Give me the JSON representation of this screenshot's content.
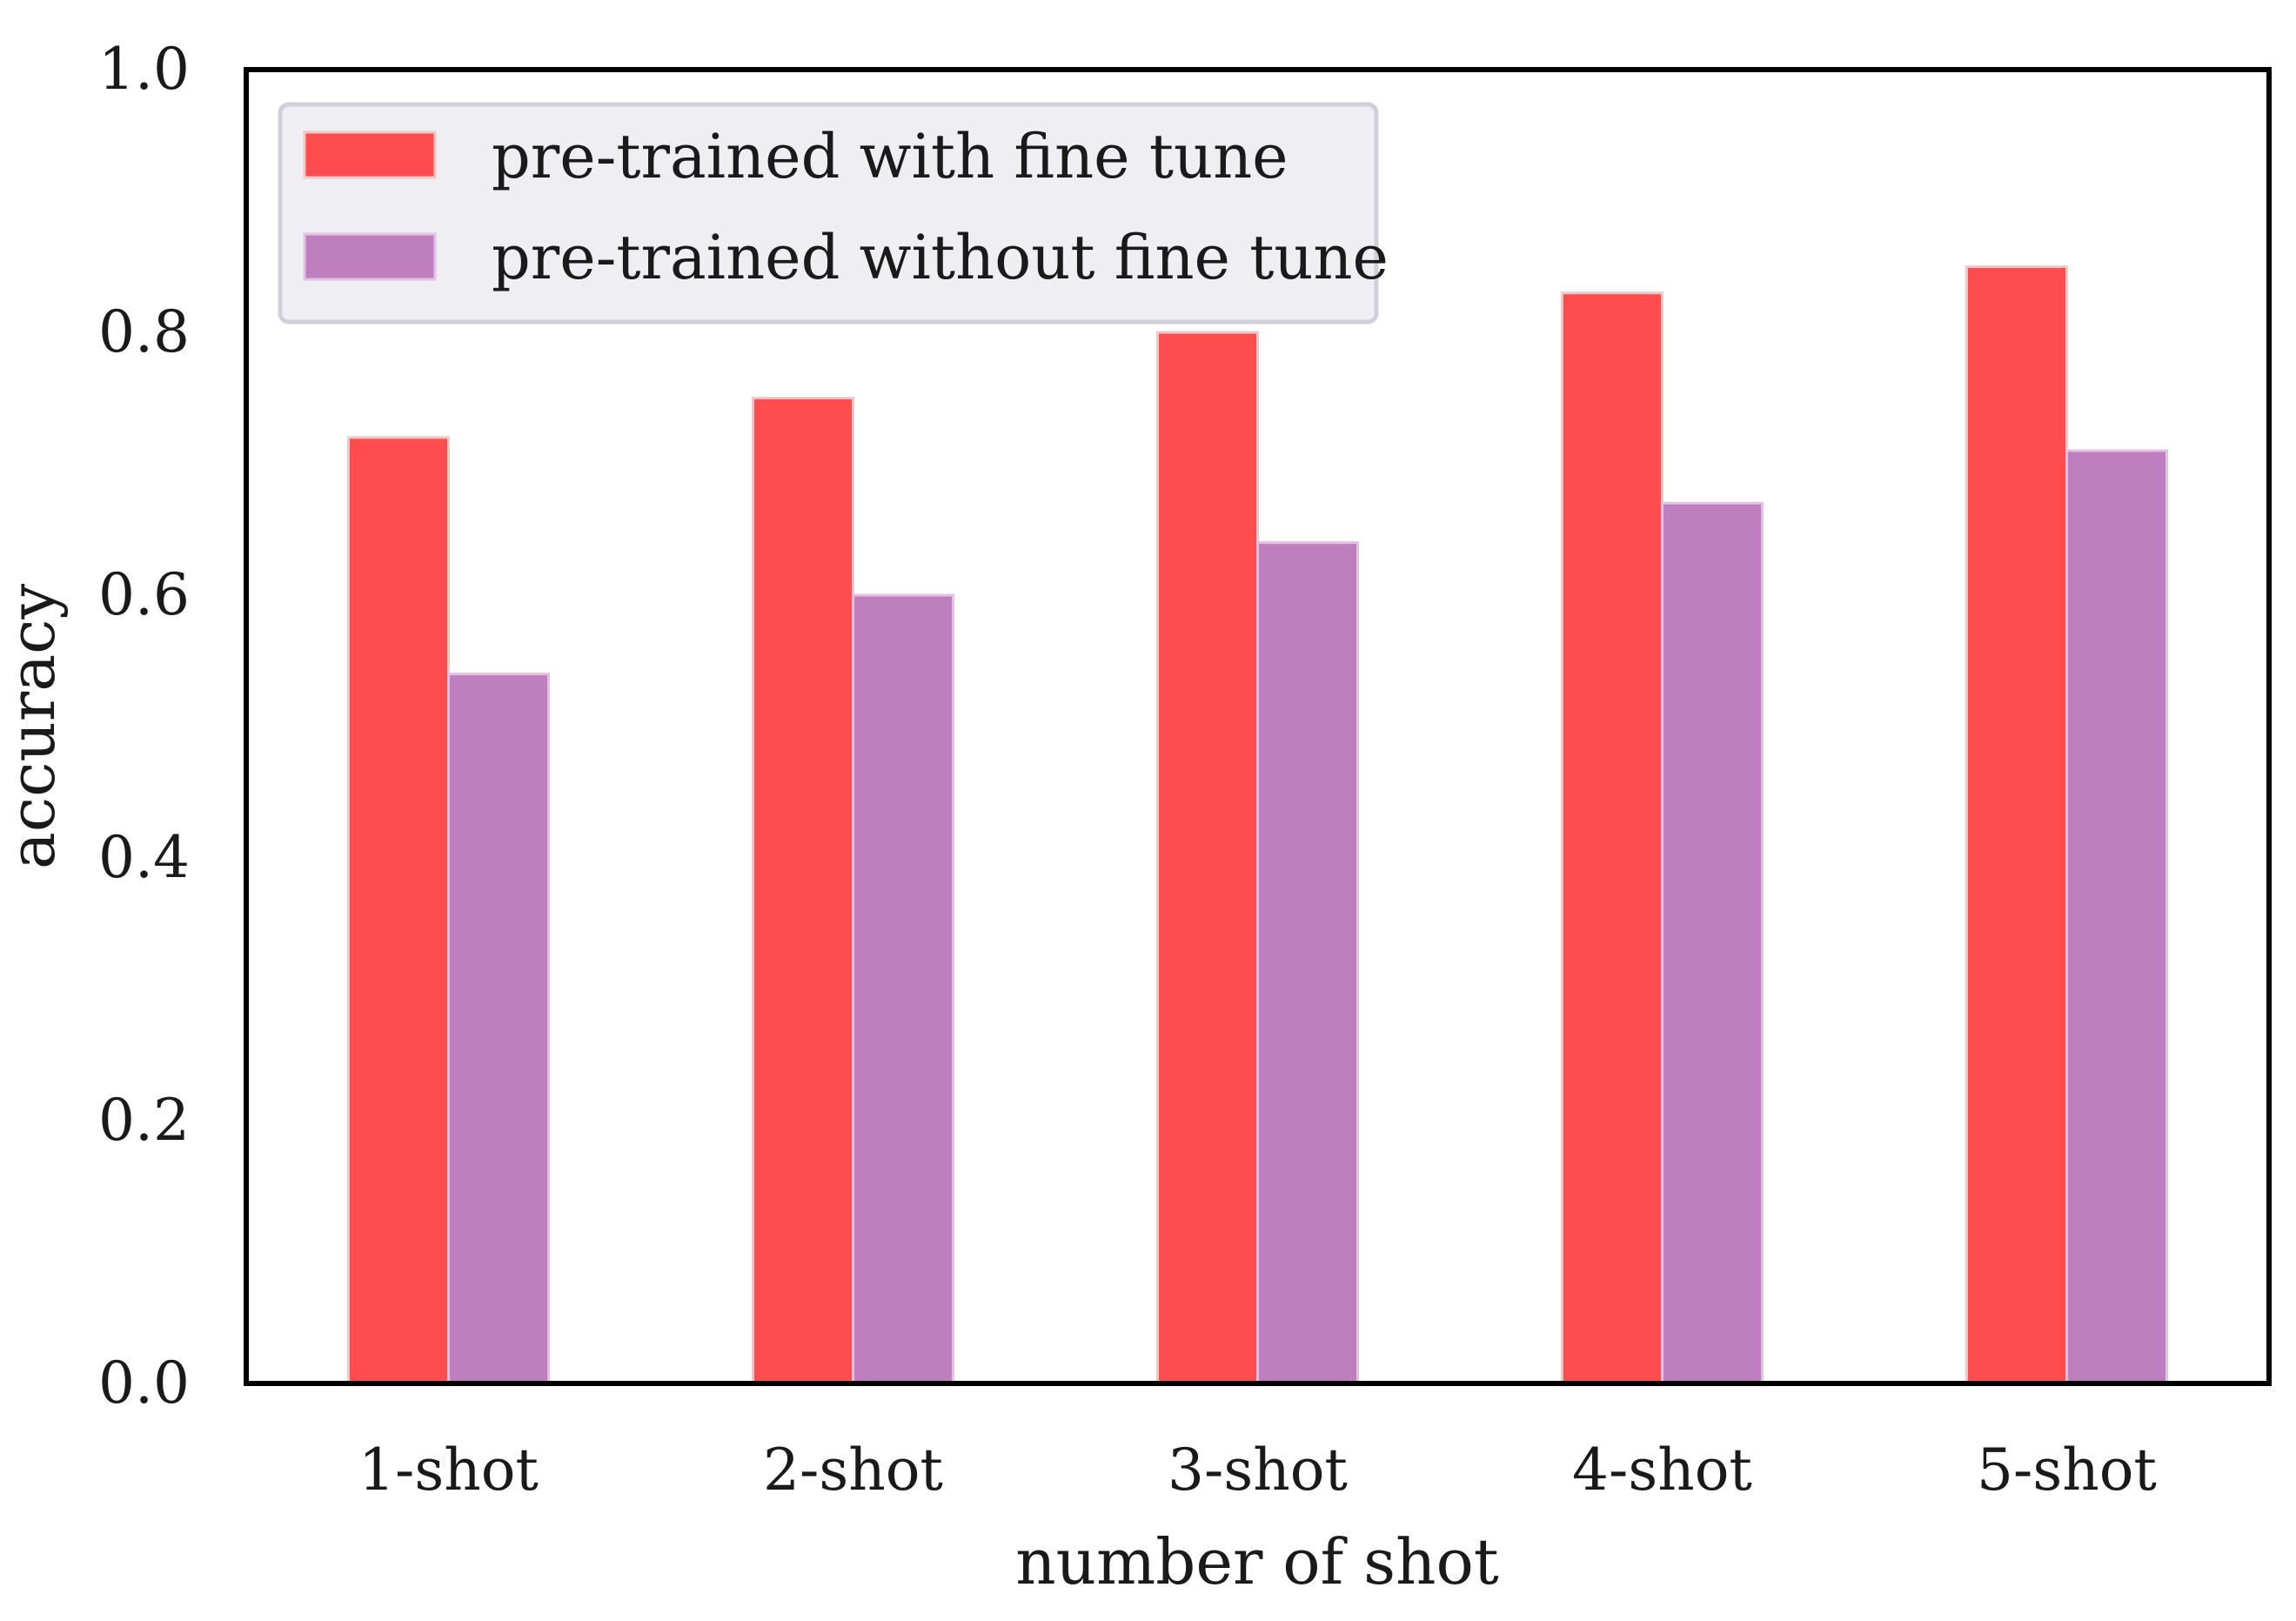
{
  "chart_data": {
    "type": "bar",
    "xlabel": "number of shot",
    "ylabel": "accuracy",
    "categories": [
      "1-shot",
      "2-shot",
      "3-shot",
      "4-shot",
      "5-shot"
    ],
    "series": [
      {
        "name": "pre-trained with fine tune",
        "values": [
          0.72,
          0.75,
          0.8,
          0.83,
          0.85
        ],
        "color": "#ff4d4f"
      },
      {
        "name": "pre-trained without fine tune",
        "values": [
          0.54,
          0.6,
          0.64,
          0.67,
          0.71
        ],
        "color": "#bf7fbf"
      }
    ],
    "ylim": [
      0,
      1.0
    ],
    "yticks": [
      "0.0",
      "0.2",
      "0.4",
      "0.6",
      "0.8",
      "1.0"
    ],
    "grid": false,
    "legend_position": "top-left"
  }
}
